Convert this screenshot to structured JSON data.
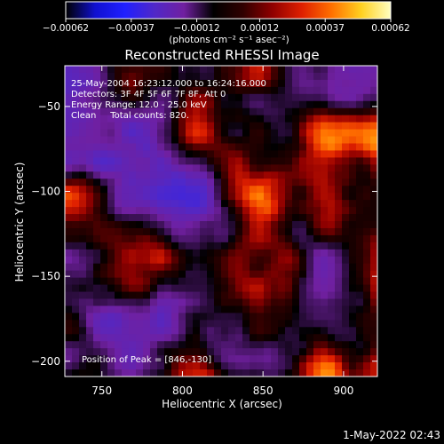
{
  "chart_data": {
    "type": "heatmap",
    "title": "Reconstructed RHESSI Image",
    "xlabel": "Heliocentric X (arcsec)",
    "ylabel": "Heliocentric Y (arcsec)",
    "xlim": [
      727,
      921
    ],
    "ylim": [
      -209,
      -26
    ],
    "x_ticks": [
      750,
      800,
      850,
      900
    ],
    "x_tick_labels": [
      "750",
      "800",
      "850",
      "900"
    ],
    "y_ticks": [
      -50,
      -100,
      -150,
      -200
    ],
    "y_tick_labels": [
      "−50",
      "−100",
      "−150",
      "−200"
    ],
    "colorbar": {
      "min": -0.00062,
      "max": 0.00062,
      "ticks": [
        -0.00062,
        -0.00037,
        -0.00012,
        0.00012,
        0.00037,
        0.00062
      ],
      "tick_labels": [
        "−0.00062",
        "−0.00037",
        "−0.00012",
        "0.00012",
        "0.00037",
        "0.00062"
      ],
      "units_label": "(photons cm⁻² s⁻¹ asec⁻²)",
      "colors": [
        "#000000",
        "#1010d0",
        "#2020ff",
        "#5028c8",
        "#7020a0",
        "#000000",
        "#300000",
        "#900000",
        "#e02000",
        "#ff7000",
        "#ffd020",
        "#ffffc0"
      ]
    },
    "annotations": [
      "25-May-2004 16:23:12.000 to 16:24:16.000",
      "Detectors: 3F 4F 5F 6F 7F 8F, Att 0",
      "Energy Range: 12.0 - 25.0 keV",
      "Clean     Total counts: 820."
    ],
    "peak_label": "Position of Peak = [846,-130]",
    "peak": [
      846,
      -130
    ],
    "grid": false,
    "legend": "none"
  },
  "footer": {
    "timestamp": "1-May-2022 02:43"
  }
}
